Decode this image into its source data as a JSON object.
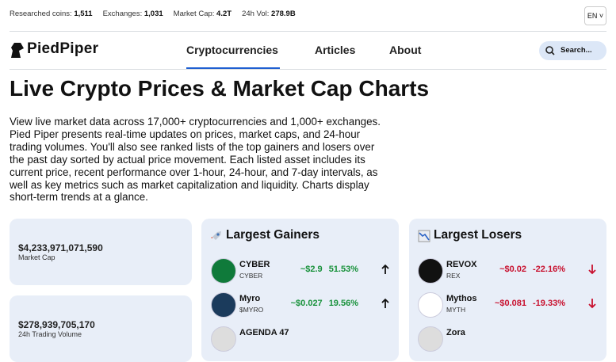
{
  "topbar": {
    "stats": [
      {
        "label": "Researched coins:",
        "value": "1,511"
      },
      {
        "label": "Exchanges:",
        "value": "1,031"
      },
      {
        "label": "Market Cap:",
        "value": "4.2T"
      },
      {
        "label": "24h Vol:",
        "value": "278.9B"
      }
    ],
    "language": "EN"
  },
  "nav": {
    "logo": "PiedPiper",
    "links": [
      "Cryptocurrencies",
      "Articles",
      "About"
    ],
    "search_placeholder": "Search..."
  },
  "hero": {
    "title": "Live Crypto Prices & Market Cap Charts",
    "description": "View live market data across 17,000+ cryptocurrencies and 1,000+ exchanges. Pied Piper presents real-time updates on prices, market caps, and 24-hour trading volumes. You'll also see ranked lists of the top gainers and losers over the past day sorted by actual price movement. Each listed asset includes its current price, recent performance over 1-hour, 24-hour, and 7-day intervals, as well as key metrics such as market capitalization and liquidity. Charts display short-term trends at a glance."
  },
  "stats_cards": [
    {
      "value": "$4,233,971,071,590",
      "label": "Market Cap"
    },
    {
      "value": "$278,939,705,170",
      "label": "24h Trading Volume"
    }
  ],
  "gainers": {
    "title": "Largest Gainers",
    "items": [
      {
        "name": "CYBER",
        "symbol": "CYBER",
        "price": "~$2.9",
        "change": "51.53%"
      },
      {
        "name": "Myro",
        "symbol": "$MYRO",
        "price": "~$0.027",
        "change": "19.56%"
      },
      {
        "name": "AGENDA 47"
      }
    ]
  },
  "losers": {
    "title": "Largest Losers",
    "items": [
      {
        "name": "REVOX",
        "symbol": "REX",
        "price": "~$0.02",
        "change": "-22.16%"
      },
      {
        "name": "Mythos",
        "symbol": "MYTH",
        "price": "~$0.081",
        "change": "-19.33%"
      },
      {
        "name": "Zora"
      }
    ]
  }
}
